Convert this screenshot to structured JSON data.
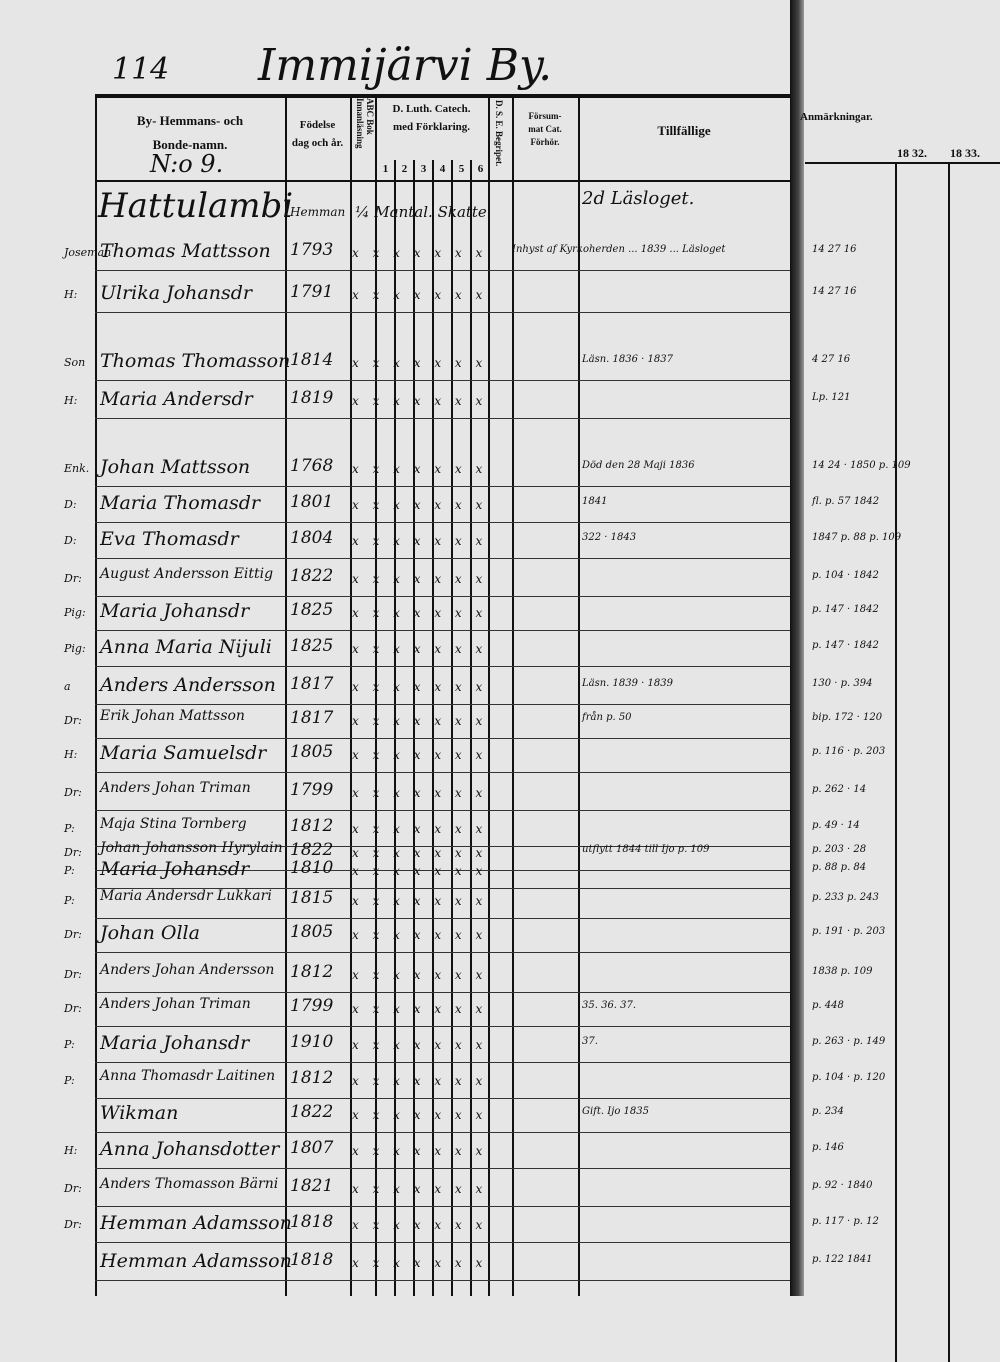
{
  "page": {
    "number": "114",
    "village": "Immijärvi By."
  },
  "header": {
    "name_col": [
      "By- Hemmans- och",
      "Bonde-namn."
    ],
    "farm_number": "N:o 9.",
    "birth_col": [
      "Födelse",
      "dag och år."
    ],
    "abc_col": "ABC Bok Innanläsning",
    "catech_col": [
      "D. Luth. Catech.",
      "med Förklaring."
    ],
    "catech_numbers": [
      "1",
      "2",
      "3",
      "4",
      "5",
      "6"
    ],
    "dse_col": "D. S. E. Begripet.",
    "forsum_col": [
      "Försum-",
      "mat Cat.",
      "Förhör."
    ],
    "tillfallige": "Tillfällige",
    "anmarkningar": "Anmärkningar.",
    "years": [
      "18 32.",
      "18 33."
    ]
  },
  "farm": {
    "name": "Hattulambi",
    "type": "Hemman",
    "mantal": "¼ Mantal. Skatte",
    "loget": "2d Läsloget."
  },
  "rows": [
    {
      "role": "Joseman",
      "name": "Thomas Mattsson",
      "born": "1793",
      "marks": "x x x x x x x",
      "note": "Inhyst af Kyrkoherden ... 1839 ... Läsloget",
      "rnote": "14  27 16"
    },
    {
      "role": "H:",
      "name": "Ulrika Johansdr",
      "born": "1791",
      "marks": "x x x x x x x",
      "note": "",
      "rnote": "14  27 16"
    },
    {
      "role": "Son",
      "name": "Thomas Thomasson",
      "born": "1814",
      "marks": "x x x x x x x",
      "note": "Läsn. 1836 · 1837",
      "rnote": "4  27 16"
    },
    {
      "role": "H:",
      "name": "Maria Andersdr",
      "born": "1819",
      "marks": "x x x x x x x",
      "note": "",
      "rnote": "Lp. 121"
    },
    {
      "role": "Enk.",
      "name": "Johan Mattsson",
      "born": "1768",
      "marks": "x x x x x x x",
      "note": "Död den 28 Maji 1836",
      "rnote": "14  24 · 1850 p. 109"
    },
    {
      "role": "D:",
      "name": "Maria Thomasdr",
      "born": "1801",
      "marks": "x x x x x x x",
      "note": "1841",
      "rnote": "fl. p. 57 1842"
    },
    {
      "role": "D:",
      "name": "Eva Thomasdr",
      "born": "1804",
      "marks": "x x x x x x x",
      "note": "322 · 1843",
      "rnote": "1847 p. 88 p. 109"
    },
    {
      "role": "Dr:",
      "name": "August Andersson Eittig",
      "born": "1822",
      "marks": "x x x x x x x",
      "note": "",
      "rnote": "p. 104 · 1842"
    },
    {
      "role": "Pig:",
      "name": "Maria Johansdr",
      "born": "1825",
      "marks": "x x x x x x x",
      "note": "",
      "rnote": "p. 147 · 1842"
    },
    {
      "role": "Pig:",
      "name": "Anna Maria Nijuli",
      "born": "1825",
      "marks": "x x x x x x x",
      "note": "",
      "rnote": "p. 147 · 1842"
    },
    {
      "role": "a",
      "name": "Anders Andersson",
      "born": "1817",
      "marks": "x x x x x x x",
      "note": "Läsn. 1839 · 1839",
      "rnote": "130 · p. 394"
    },
    {
      "role": "Dr:",
      "name": "Erik Johan Mattsson",
      "born": "1817",
      "marks": "x x x x x x x",
      "note": "från p. 50",
      "rnote": "bip. 172 · 120"
    },
    {
      "role": "H:",
      "name": "Maria Samuelsdr",
      "born": "1805",
      "marks": "x x x x x x x",
      "note": "",
      "rnote": "p. 116 · p. 203"
    },
    {
      "role": "Dr:",
      "name": "Anders Johan Triman",
      "born": "1799",
      "marks": "x x x x x x x",
      "note": "",
      "rnote": "p. 262 · 14"
    },
    {
      "role": "P:",
      "name": "Maja Stina Tornberg",
      "born": "1812",
      "marks": "x x x x x x x",
      "note": "",
      "rnote": "p. 49 · 14"
    },
    {
      "role": "Dr:",
      "name": "Johan Johansson Hyrylain",
      "born": "1822",
      "marks": "x x x x x x x",
      "note": "utflytt 1844 till Ijo p. 109",
      "rnote": "p. 203 · 28"
    },
    {
      "role": "P:",
      "name": "Maria Johansdr",
      "born": "1810",
      "marks": "x x x x x x x",
      "note": "",
      "rnote": "p. 88 p. 84"
    },
    {
      "role": "P:",
      "name": "Maria Andersdr Lukkari",
      "born": "1815",
      "marks": "x x x x x x x",
      "note": "",
      "rnote": "p. 233 p. 243"
    },
    {
      "role": "Dr:",
      "name": "Johan Olla",
      "born": "1805",
      "marks": "x x x x x x x",
      "note": "",
      "rnote": "p. 191 · p. 203"
    },
    {
      "role": "Dr:",
      "name": "Anders Johan Andersson",
      "born": "1812",
      "marks": "x x x x x x x",
      "note": "",
      "rnote": "1838 p. 109"
    },
    {
      "role": "Dr:",
      "name": "Anders Johan Triman",
      "born": "1799",
      "marks": "x x x x x x x",
      "note": "35. 36. 37.",
      "rnote": "p. 448"
    },
    {
      "role": "P:",
      "name": "Maria Johansdr",
      "born": "1910",
      "marks": "x x x x x x x",
      "note": "37.",
      "rnote": "p. 263 · p. 149"
    },
    {
      "role": "P:",
      "name": "Anna Thomasdr Laitinen",
      "born": "1812",
      "marks": "x x x x x x x",
      "note": "",
      "rnote": "p. 104 · p. 120"
    },
    {
      "role": "",
      "name": "Wikman",
      "born": "1822",
      "marks": "x x x x x x x",
      "note": "Gift. Ijo 1835",
      "rnote": "p. 234"
    },
    {
      "role": "H:",
      "name": "Anna Johansdotter",
      "born": "1807",
      "marks": "x x x x x x x",
      "note": "",
      "rnote": "p. 146"
    },
    {
      "role": "Dr:",
      "name": "Anders Thomasson Bärni",
      "born": "1821",
      "marks": "x x x x x x x",
      "note": "",
      "rnote": "p. 92 · 1840"
    },
    {
      "role": "Dr:",
      "name": "Hemman Adamsson",
      "born": "1818",
      "marks": "x x x x x x x",
      "note": "",
      "rnote": "p. 117 · p. 12"
    },
    {
      "role": "",
      "name": "Hemman Adamsson",
      "born": "1818",
      "marks": "x x x x x x x",
      "note": "",
      "rnote": "p. 122 1841"
    }
  ]
}
